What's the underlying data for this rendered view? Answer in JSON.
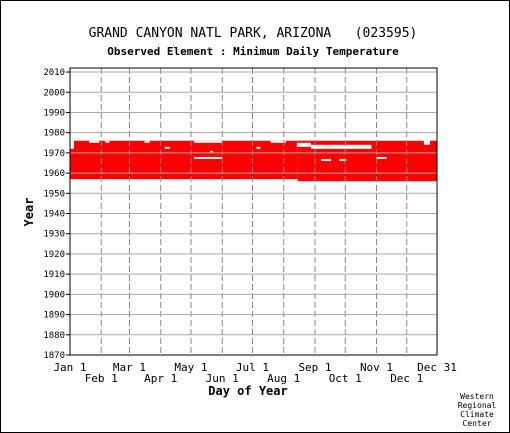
{
  "chart_data": {
    "type": "heatmap",
    "title": "GRAND CANYON NATL PARK, ARIZONA   (023595)",
    "subtitle": "Observed Element : Minimum Daily Temperature",
    "xlabel": "Day of Year",
    "ylabel": "Year",
    "ylim": [
      1870,
      2012
    ],
    "xlim": [
      1,
      365
    ],
    "grid": true,
    "legend": "none",
    "x_ticks_upper": [
      {
        "label": "Jan 1",
        "day": 1
      },
      {
        "label": "Mar 1",
        "day": 60
      },
      {
        "label": "May 1",
        "day": 121
      },
      {
        "label": "Jul 1",
        "day": 182
      },
      {
        "label": "Sep 1",
        "day": 244
      },
      {
        "label": "Nov 1",
        "day": 305
      },
      {
        "label": "Dec 31",
        "day": 365
      }
    ],
    "x_ticks_lower": [
      {
        "label": "Feb 1",
        "day": 32
      },
      {
        "label": "Apr 1",
        "day": 91
      },
      {
        "label": "Jun 1",
        "day": 152
      },
      {
        "label": "Aug 1",
        "day": 213
      },
      {
        "label": "Oct 1",
        "day": 274
      },
      {
        "label": "Dec 1",
        "day": 335
      }
    ],
    "y_ticks": [
      2010,
      2000,
      1990,
      1980,
      1970,
      1960,
      1950,
      1940,
      1930,
      1920,
      1910,
      1900,
      1890,
      1880,
      1870
    ],
    "series": [
      {
        "color": "#ff0000",
        "coverage": [
          {
            "start_day": 1,
            "end_day": 227,
            "start_year": 1957,
            "end_year": 1976
          },
          {
            "start_day": 227,
            "end_day": 365,
            "start_year": 1956,
            "end_year": 1976
          }
        ],
        "gaps": [
          {
            "start_day": 1,
            "end_day": 5,
            "start_year": 1972,
            "end_year": 1976
          },
          {
            "start_day": 20,
            "end_day": 30,
            "start_year": 1975,
            "end_year": 1976
          },
          {
            "start_day": 36,
            "end_day": 40,
            "start_year": 1975,
            "end_year": 1976
          },
          {
            "start_day": 75,
            "end_day": 80,
            "start_year": 1975,
            "end_year": 1976
          },
          {
            "start_day": 95,
            "end_day": 100,
            "start_year": 1972,
            "end_year": 1973
          },
          {
            "start_day": 124,
            "end_day": 152,
            "start_year": 1975,
            "end_year": 1976
          },
          {
            "start_day": 124,
            "end_day": 152,
            "start_year": 1967,
            "end_year": 1968
          },
          {
            "start_day": 140,
            "end_day": 143,
            "start_year": 1970,
            "end_year": 1971
          },
          {
            "start_day": 186,
            "end_day": 190,
            "start_year": 1972,
            "end_year": 1973
          },
          {
            "start_day": 200,
            "end_day": 215,
            "start_year": 1975,
            "end_year": 1976
          },
          {
            "start_day": 226,
            "end_day": 240,
            "start_year": 1973,
            "end_year": 1975
          },
          {
            "start_day": 240,
            "end_day": 300,
            "start_year": 1972,
            "end_year": 1974
          },
          {
            "start_day": 250,
            "end_day": 260,
            "start_year": 1966,
            "end_year": 1967
          },
          {
            "start_day": 268,
            "end_day": 275,
            "start_year": 1966,
            "end_year": 1967
          },
          {
            "start_day": 305,
            "end_day": 315,
            "start_year": 1967,
            "end_year": 1968
          },
          {
            "start_day": 352,
            "end_day": 358,
            "start_year": 1974,
            "end_year": 1976
          }
        ]
      }
    ]
  },
  "credit": [
    "Western",
    "Regional",
    "Climate",
    "Center"
  ]
}
